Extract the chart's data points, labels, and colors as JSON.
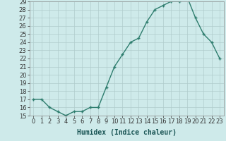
{
  "x": [
    0,
    1,
    2,
    3,
    4,
    5,
    6,
    7,
    8,
    9,
    10,
    11,
    12,
    13,
    14,
    15,
    16,
    17,
    18,
    19,
    20,
    21,
    22,
    23
  ],
  "y": [
    17,
    17,
    16,
    15.5,
    15,
    15.5,
    15.5,
    16,
    16,
    18.5,
    21,
    22.5,
    24,
    24.5,
    26.5,
    28,
    28.5,
    29,
    29,
    29.5,
    27,
    25,
    24,
    22
  ],
  "line_color": "#2e7d6e",
  "marker": "+",
  "marker_color": "#2e7d6e",
  "bg_color": "#ceeaea",
  "grid_color": "#b0cccc",
  "xlabel": "Humidex (Indice chaleur)",
  "ylim": [
    15,
    29
  ],
  "xlim": [
    -0.5,
    23.5
  ],
  "yticks": [
    15,
    16,
    17,
    18,
    19,
    20,
    21,
    22,
    23,
    24,
    25,
    26,
    27,
    28,
    29
  ],
  "xticks": [
    0,
    1,
    2,
    3,
    4,
    5,
    6,
    7,
    8,
    9,
    10,
    11,
    12,
    13,
    14,
    15,
    16,
    17,
    18,
    19,
    20,
    21,
    22,
    23
  ],
  "xtick_labels": [
    "0",
    "1",
    "2",
    "3",
    "4",
    "5",
    "6",
    "7",
    "8",
    "9",
    "10",
    "11",
    "12",
    "13",
    "14",
    "15",
    "16",
    "17",
    "18",
    "19",
    "20",
    "21",
    "22",
    "23"
  ],
  "ytick_labels": [
    "15",
    "16",
    "17",
    "18",
    "19",
    "20",
    "21",
    "22",
    "23",
    "24",
    "25",
    "26",
    "27",
    "28",
    "29"
  ],
  "xlabel_fontsize": 7,
  "tick_fontsize": 6,
  "line_width": 1.0,
  "marker_size": 3.5
}
